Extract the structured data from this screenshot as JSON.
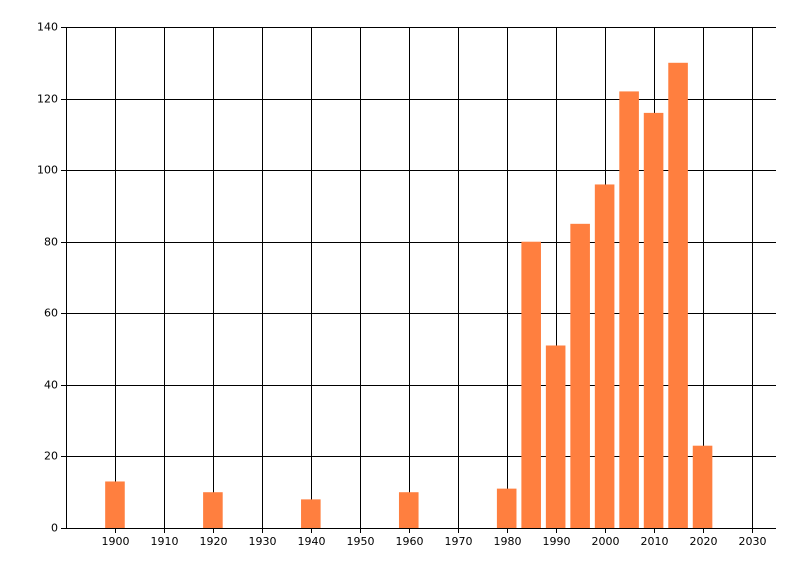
{
  "chart_data": {
    "type": "bar",
    "x": [
      1900,
      1920,
      1940,
      1960,
      1980,
      1985,
      1990,
      1995,
      2000,
      2005,
      2010,
      2015,
      2020
    ],
    "values": [
      13,
      10,
      8,
      10,
      11,
      80,
      51,
      85,
      96,
      122,
      116,
      130,
      23
    ],
    "color": "#ff7f3f",
    "xlim": [
      1890,
      2035
    ],
    "xticks": [
      1900,
      1910,
      1920,
      1930,
      1940,
      1950,
      1960,
      1970,
      1980,
      1990,
      2000,
      2010,
      2020,
      2030
    ],
    "ylim": [
      0,
      140
    ],
    "yticks": [
      0,
      20,
      40,
      60,
      80,
      100,
      120,
      140
    ],
    "grid": true
  }
}
